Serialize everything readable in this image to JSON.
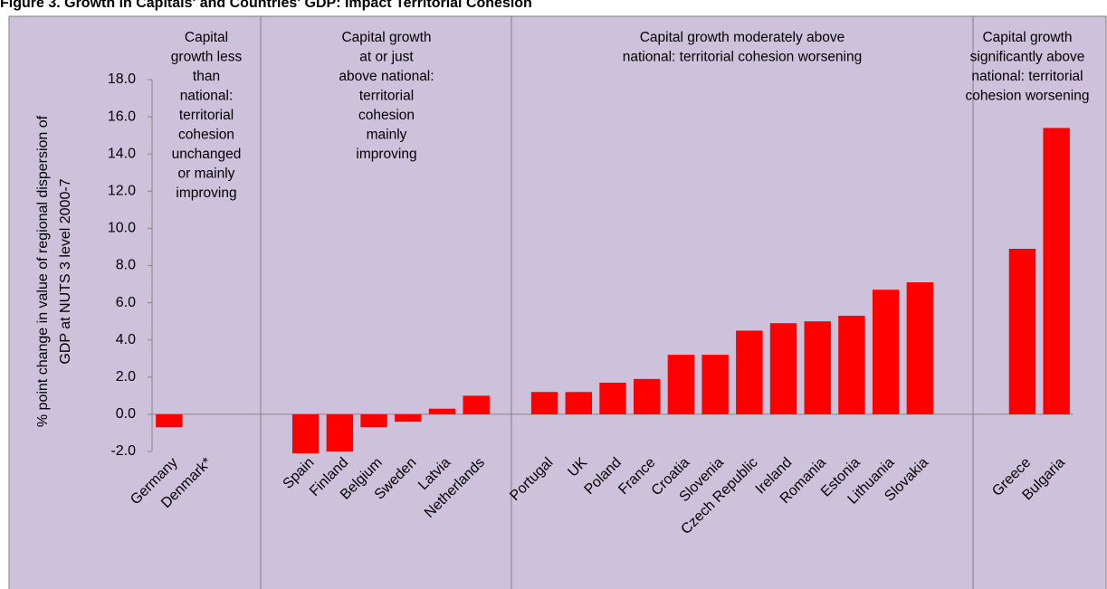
{
  "chart_data": {
    "type": "bar",
    "title": "Figure 3. Growth in Capitals' and Countries' GDP: Impact Territorial Cohesion",
    "ylabel": [
      "% point change in value of regional dispersion of",
      "GDP at NUTS 3 level 2000-7"
    ],
    "categories": [
      "Germany",
      "Denmark*",
      null,
      null,
      "Spain",
      "Finland",
      "Belgium",
      "Sweden",
      "Latvia",
      "Netherlands",
      null,
      "Portugal",
      "UK",
      "Poland",
      "France",
      "Croatia",
      "Slovenia",
      "Czech Republic",
      "Ireland",
      "Romania",
      "Estonia",
      "Lithuania",
      "Slovakia",
      null,
      null,
      "Greece",
      "Bulgaria"
    ],
    "values": [
      -0.7,
      0,
      null,
      null,
      -2.1,
      -2.0,
      -0.7,
      -0.4,
      0.3,
      1.0,
      null,
      1.2,
      1.2,
      1.7,
      1.9,
      3.2,
      3.2,
      4.5,
      4.9,
      5.0,
      5.3,
      6.7,
      7.1,
      null,
      null,
      8.9,
      15.4
    ],
    "color": "#ff0000",
    "ylim": [
      -2,
      18
    ],
    "yticks": [
      {
        "value": -2,
        "label": "-2.0"
      },
      {
        "value": 0,
        "label": "0.0"
      },
      {
        "value": 2,
        "label": "2.0"
      },
      {
        "value": 4,
        "label": "4.0"
      },
      {
        "value": 6,
        "label": "6.0"
      },
      {
        "value": 8,
        "label": "8.0"
      },
      {
        "value": 10,
        "label": "10.0"
      },
      {
        "value": 12,
        "label": "12.0"
      },
      {
        "value": 14,
        "label": "14.0"
      },
      {
        "value": 16,
        "label": "16.0"
      },
      {
        "value": 18,
        "label": "18.0"
      }
    ],
    "annotations": [
      [
        "Capital",
        "growth less",
        "than",
        "national:",
        "territorial",
        "cohesion",
        "unchanged",
        "or mainly",
        "improving"
      ],
      [
        "Capital growth",
        "at or just",
        "above national:",
        "territorial",
        "cohesion",
        "mainly",
        "improving"
      ],
      [
        "Capital growth moderately above",
        "national: territorial cohesion worsening"
      ],
      [
        "Capital growth",
        "significantly above",
        "national: territorial",
        "cohesion worsening"
      ]
    ]
  }
}
